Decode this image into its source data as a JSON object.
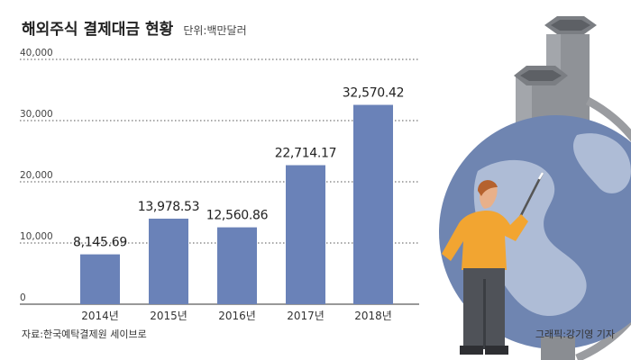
{
  "header": {
    "title": "해외주식 결제대금 현황",
    "unit": "단위:백만달러"
  },
  "footer": {
    "source": "자료:한국예탁결제원 세이브로",
    "credit": "그래픽:강기영 기자"
  },
  "colors": {
    "bar": "#6a82b8",
    "globe": "#6f85b1",
    "chimney": "#8f9297",
    "shirt": "#f2a531"
  },
  "chart_data": {
    "type": "bar",
    "title": "해외주식 결제대금 현황",
    "unit": "단위:백만달러",
    "categories": [
      "2014년",
      "2015년",
      "2016년",
      "2017년",
      "2018년"
    ],
    "values": [
      8145.69,
      13978.53,
      12560.86,
      22714.17,
      32570.42
    ],
    "value_labels": [
      "8,145.69",
      "13,978.53",
      "12,560.86",
      "22,714.17",
      "32,570.42"
    ],
    "yticks": [
      0,
      10000,
      20000,
      30000,
      40000
    ],
    "ytick_labels": [
      "0",
      "10,000",
      "20,000",
      "30,000",
      "40,000"
    ],
    "ylim": [
      0,
      40000
    ],
    "grid": true
  }
}
